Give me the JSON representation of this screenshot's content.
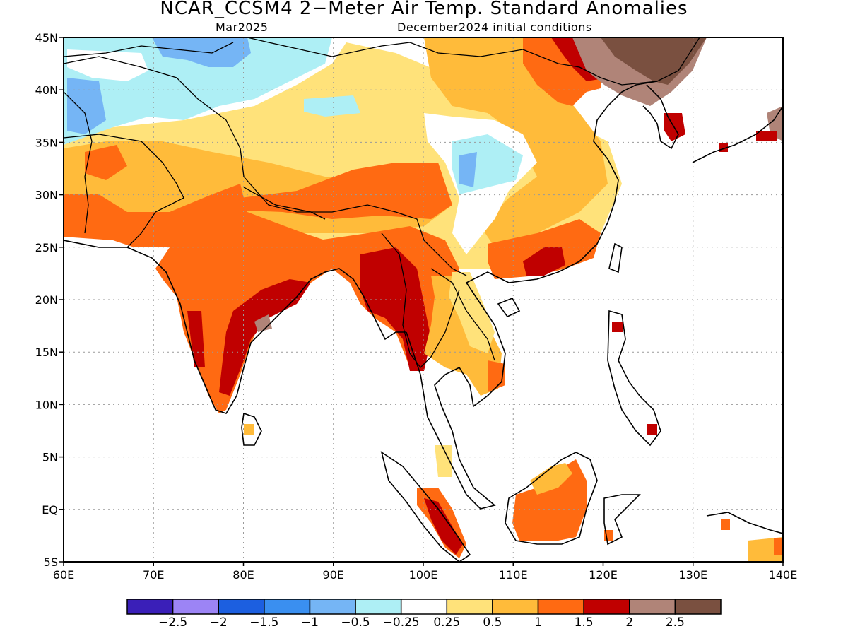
{
  "title": "NCAR_CCSM4 2−Meter Air Temp. Standard Anomalies",
  "subtitle_left": "Mar2025",
  "subtitle_right": "December2024 initial conditions",
  "lat_labels": [
    "45N",
    "40N",
    "35N",
    "30N",
    "25N",
    "20N",
    "15N",
    "10N",
    "5N",
    "EQ",
    "5S"
  ],
  "lon_labels": [
    "60E",
    "70E",
    "80E",
    "90E",
    "100E",
    "110E",
    "120E",
    "130E",
    "140E"
  ],
  "colorbar": {
    "colors": [
      "#3a1fb8",
      "#9c84f5",
      "#1c5fe0",
      "#3a8ff0",
      "#75b5f5",
      "#aeeff5",
      "#ffffff",
      "#ffe27a",
      "#ffbb3a",
      "#ff6a12",
      "#c00000",
      "#b08478",
      "#7a5040"
    ],
    "labels": [
      "−2.5",
      "−2",
      "−1.5",
      "−1",
      "−0.5",
      "−0.25",
      "0.25",
      "0.5",
      "1",
      "1.5",
      "2",
      "2.5"
    ]
  },
  "colors": {
    "ocean": "#ffffff",
    "grid": "#9a9a9a",
    "coast": "#000000"
  }
}
